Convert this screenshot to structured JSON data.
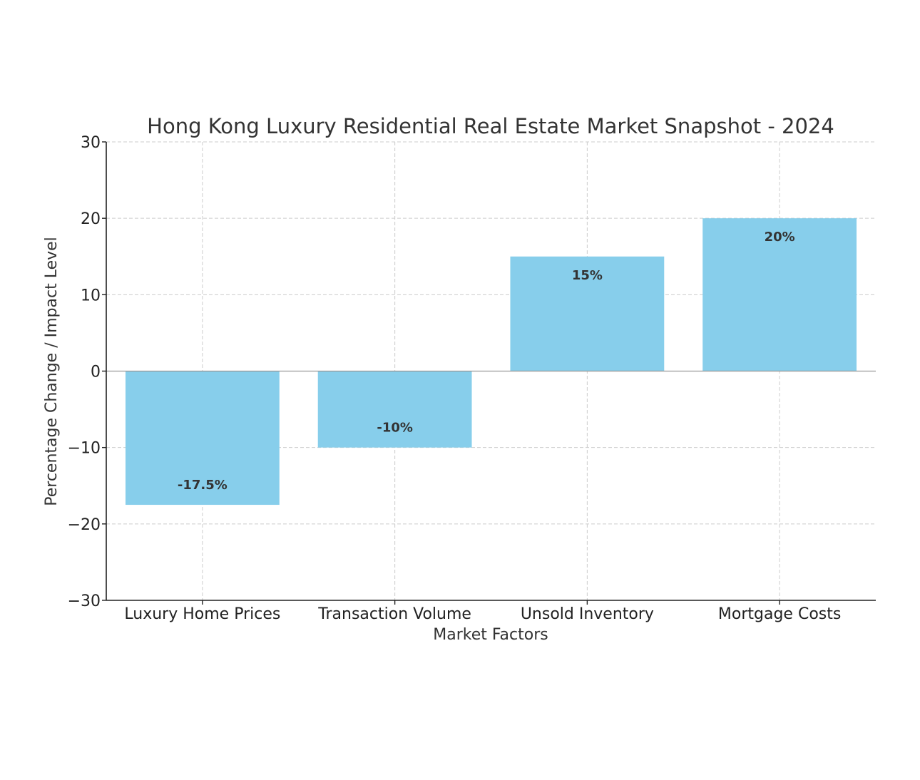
{
  "chart_data": {
    "type": "bar",
    "title": "Hong Kong Luxury Residential Real Estate Market Snapshot - 2024",
    "xlabel": "Market Factors",
    "ylabel": "Percentage Change / Impact Level",
    "categories": [
      "Luxury Home Prices",
      "Transaction Volume",
      "Unsold Inventory",
      "Mortgage Costs"
    ],
    "values": [
      -17.5,
      -10,
      15,
      20
    ],
    "data_labels": [
      "-17.5%",
      "-10%",
      "15%",
      "20%"
    ],
    "ylim": [
      -30,
      30
    ],
    "yticks": [
      -30,
      -20,
      -10,
      0,
      10,
      20,
      30
    ],
    "ytick_labels": [
      "−30",
      "−20",
      "−10",
      "0",
      "10",
      "20",
      "30"
    ],
    "bar_color": "#87ceeb",
    "grid": true,
    "legend": "none"
  }
}
